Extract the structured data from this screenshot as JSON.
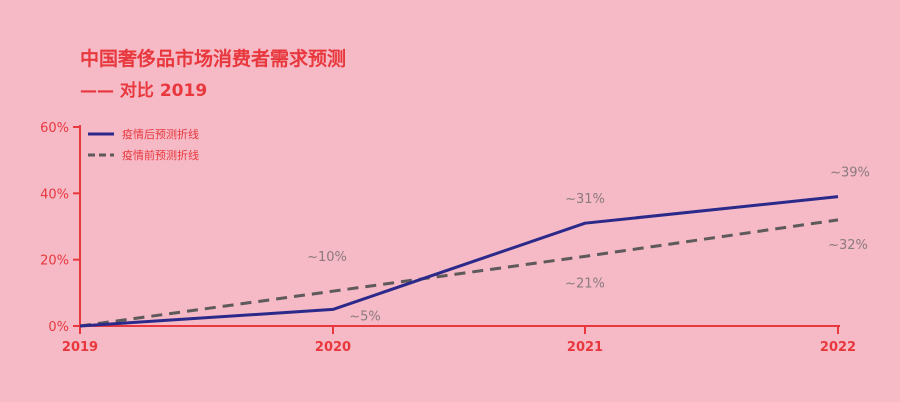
{
  "chart_data": {
    "type": "line",
    "title": "中国奢侈品市场消费者需求预测",
    "subtitle": "—— 对比 2019",
    "categories": [
      "2019",
      "2020",
      "2021",
      "2022"
    ],
    "ylim": [
      0,
      60
    ],
    "yticks": [
      "0%",
      "20%",
      "40%",
      "60%"
    ],
    "ytick_values": [
      0,
      20,
      40,
      60
    ],
    "series": [
      {
        "name": "疫情后预测折线",
        "style": "solid",
        "color": "#2b2a8a",
        "values": [
          0,
          5,
          31,
          39
        ],
        "labels": [
          "",
          "~5%",
          "~31%",
          "~39%"
        ]
      },
      {
        "name": "疫情前预测折线",
        "style": "dashed",
        "color": "#5e5a5b",
        "values": [
          0,
          10.5,
          21,
          32
        ],
        "labels": [
          "",
          "~10%",
          "~21%",
          "~32%"
        ]
      }
    ],
    "colors": {
      "axis": "#e8383d",
      "background": "#f6b9c6",
      "label": "#8a7b7e"
    }
  }
}
